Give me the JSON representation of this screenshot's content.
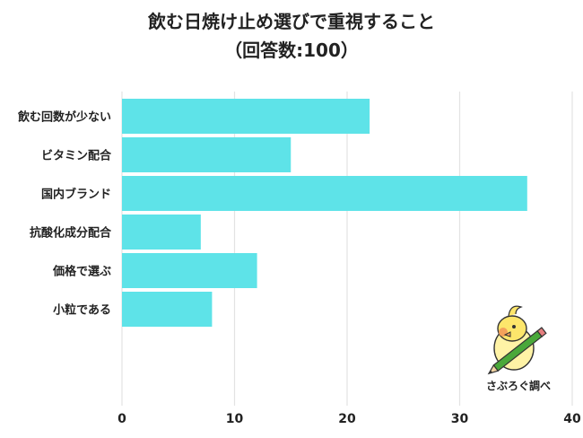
{
  "chart_data": {
    "type": "bar",
    "orientation": "horizontal",
    "title_line1": "飲む日焼け止め選びで重視すること",
    "title_line2": "（回答数:100）",
    "categories": [
      "飲む回数が少ない",
      "ビタミン配合",
      "国内ブランド",
      "抗酸化成分配合",
      "価格で選ぶ",
      "小粒である"
    ],
    "values": [
      22,
      15,
      36,
      7,
      12,
      8
    ],
    "xlim": [
      0,
      40
    ],
    "xticks": [
      0,
      10,
      20,
      30,
      40
    ],
    "grid": true,
    "bar_color": "#5ee3e8"
  },
  "watermark": {
    "text": "さぶろぐ調べ",
    "icon": "bird-with-pencil-icon"
  }
}
